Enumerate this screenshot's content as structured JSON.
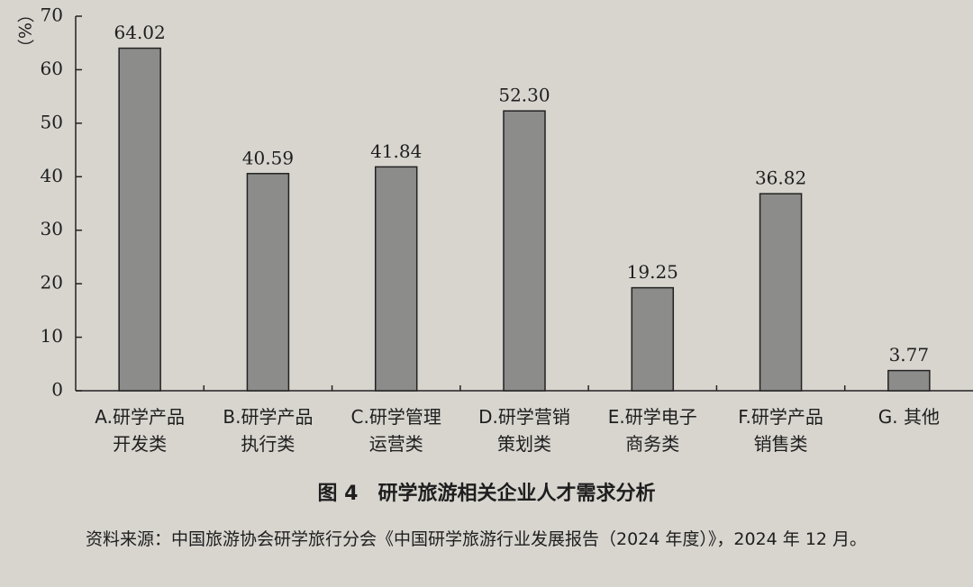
{
  "chart_data": {
    "type": "bar",
    "title": "图 4　研学旅游相关企业人才需求分析",
    "y_label": "（%）",
    "categories": [
      "A.研学产品\n开发类",
      "B.研学产品\n执行类",
      "C.研学管理\n运营类",
      "D.研学营销\n策划类",
      "E.研学电子\n商务类",
      "F.研学产品\n销售类",
      "G. 其他"
    ],
    "values": [
      64.02,
      40.59,
      41.84,
      52.3,
      19.25,
      36.82,
      3.77
    ],
    "value_labels": [
      "64.02",
      "40.59",
      "41.84",
      "52.30",
      "19.25",
      "36.82",
      "3.77"
    ],
    "color": "#8c8c8a",
    "ylim": [
      0,
      70
    ],
    "yticks": [
      0,
      10,
      20,
      30,
      40,
      50,
      60,
      70
    ],
    "source": "资料来源：中国旅游协会研学旅行分会《中国研学旅游行业发展报告（2024 年度）》，2024 年 12 月。"
  }
}
